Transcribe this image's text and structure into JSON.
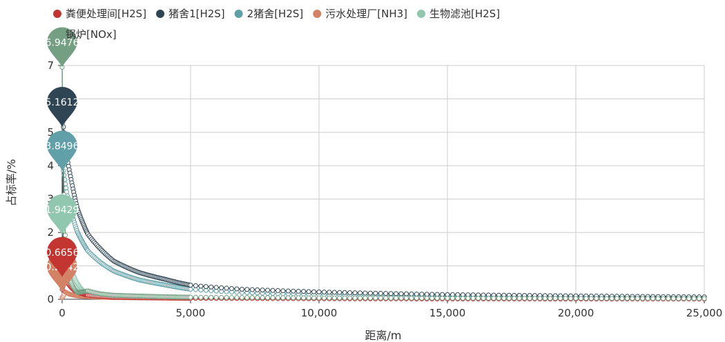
{
  "chart_data": {
    "type": "line",
    "xlabel": "距离/m",
    "ylabel": "占标率/%",
    "xlim": [
      0,
      25000
    ],
    "ylim": [
      0,
      7
    ],
    "x_ticks": [
      0,
      5000,
      10000,
      15000,
      20000,
      25000
    ],
    "x_tick_labels": [
      "0",
      "5,000",
      "10,000",
      "15,000",
      "20,000",
      "25,000"
    ],
    "y_ticks": [
      0,
      1,
      2,
      3,
      4,
      5,
      6,
      7
    ],
    "y_tick_labels": [
      "0",
      "1",
      "2",
      "3",
      "4",
      "5",
      "6",
      "7"
    ],
    "grid": true,
    "legend_position": "top",
    "series": [
      {
        "name": "粪便处理间[H2S]",
        "color": "#c23531",
        "peak": 0.6656,
        "peak_label": "0.6656",
        "points": [
          [
            0,
            0.3
          ],
          [
            100,
            0.6656
          ],
          [
            300,
            0.4
          ],
          [
            500,
            0.25
          ],
          [
            1000,
            0.12
          ],
          [
            2000,
            0.06
          ],
          [
            5000,
            0.03
          ],
          [
            10000,
            0.015
          ],
          [
            15000,
            0.01
          ],
          [
            20000,
            0.008
          ],
          [
            25000,
            0.006
          ]
        ]
      },
      {
        "name": "猪舍1[H2S]",
        "color": "#2f4554",
        "peak": 5.1612,
        "peak_label": "5.1612",
        "points": [
          [
            0,
            0.5
          ],
          [
            50,
            5.1612
          ],
          [
            200,
            4.2
          ],
          [
            400,
            3.4
          ],
          [
            600,
            2.7
          ],
          [
            1000,
            1.95
          ],
          [
            1500,
            1.5
          ],
          [
            2000,
            1.15
          ],
          [
            3000,
            0.8
          ],
          [
            4000,
            0.6
          ],
          [
            5000,
            0.42
          ],
          [
            7000,
            0.3
          ],
          [
            10000,
            0.22
          ],
          [
            15000,
            0.14
          ],
          [
            20000,
            0.1
          ],
          [
            25000,
            0.07
          ]
        ]
      },
      {
        "name": "2猪舍[H2S]",
        "color": "#61a0a8",
        "peak": 3.8496,
        "peak_label": "3.8496",
        "points": [
          [
            0,
            0.4
          ],
          [
            50,
            3.8496
          ],
          [
            200,
            3.1
          ],
          [
            400,
            2.5
          ],
          [
            600,
            2.0
          ],
          [
            1000,
            1.45
          ],
          [
            1500,
            1.1
          ],
          [
            2000,
            0.85
          ],
          [
            3000,
            0.58
          ],
          [
            4000,
            0.43
          ],
          [
            5000,
            0.3
          ],
          [
            7000,
            0.2
          ],
          [
            10000,
            0.14
          ],
          [
            15000,
            0.09
          ],
          [
            20000,
            0.06
          ],
          [
            25000,
            0.045
          ]
        ]
      },
      {
        "name": "污水处理厂[NH3]",
        "color": "#d48265",
        "peak": 0.2242,
        "peak_label": "0.2242",
        "points": [
          [
            0,
            0.05
          ],
          [
            100,
            0.2242
          ],
          [
            300,
            0.15
          ],
          [
            600,
            0.1
          ],
          [
            1000,
            0.08
          ],
          [
            2000,
            0.05
          ],
          [
            5000,
            0.03
          ],
          [
            10000,
            0.02
          ],
          [
            15000,
            0.014
          ],
          [
            20000,
            0.01
          ],
          [
            25000,
            0.008
          ]
        ]
      },
      {
        "name": "生物滤池[H2S]",
        "color": "#91c7ae",
        "peak": 1.9429,
        "peak_label": "1.9429",
        "points": [
          [
            0,
            0.3
          ],
          [
            50,
            1.9429
          ],
          [
            200,
            1.3
          ],
          [
            400,
            0.8
          ],
          [
            700,
            0.35
          ],
          [
            1000,
            0.15
          ],
          [
            2000,
            0.08
          ],
          [
            5000,
            0.05
          ],
          [
            10000,
            0.03
          ],
          [
            15000,
            0.02
          ],
          [
            20000,
            0.015
          ],
          [
            25000,
            0.012
          ]
        ]
      },
      {
        "name": "锅炉[NOx]",
        "color": "#749f83",
        "peak": 6.9476,
        "peak_label": "6.9476",
        "points": [
          [
            0,
            6.9476
          ],
          [
            50,
            4.0
          ],
          [
            150,
            1.5
          ],
          [
            300,
            0.6
          ],
          [
            600,
            0.2
          ],
          [
            1000,
            0.25
          ],
          [
            1500,
            0.16
          ],
          [
            2000,
            0.12
          ],
          [
            5000,
            0.06
          ],
          [
            10000,
            0.04
          ],
          [
            15000,
            0.03
          ],
          [
            20000,
            0.025
          ],
          [
            25000,
            0.02
          ]
        ]
      }
    ]
  }
}
